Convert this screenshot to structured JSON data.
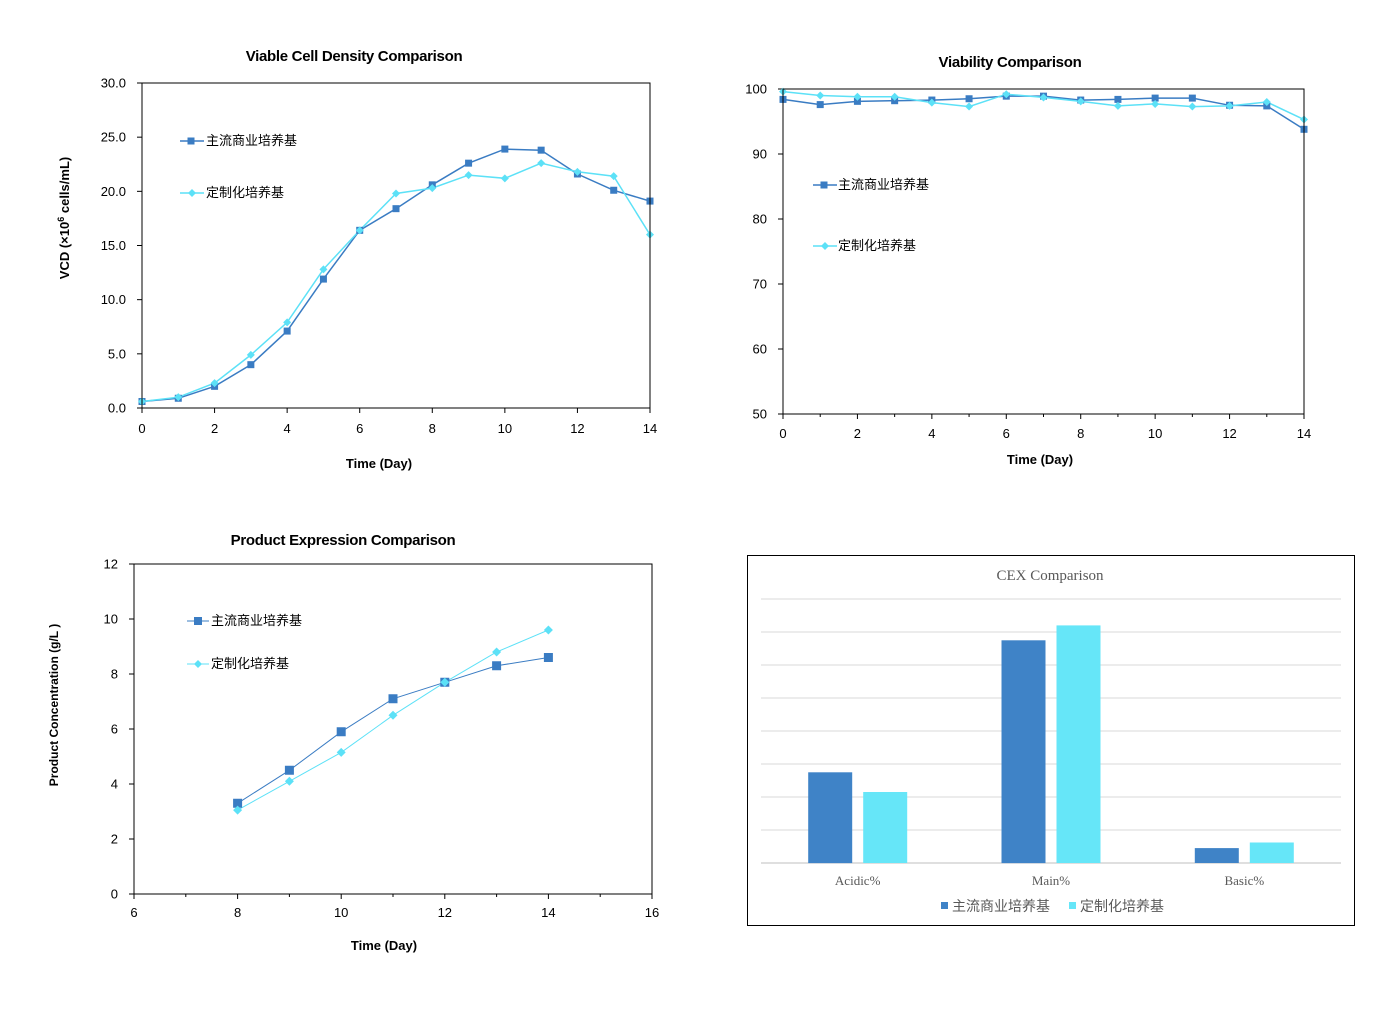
{
  "colors": {
    "series1": "#3A7CC3",
    "series2": "#5CE1F7",
    "cex_series1": "#3F83C7",
    "cex_series2": "#66E6F8",
    "frame": "#000000",
    "cex_grid": "#D9D9D9"
  },
  "chart_data": [
    {
      "type": "line",
      "title": "Viable Cell Density Comparison",
      "xlabel": "Time (Day)",
      "ylabel_prefix": "VCD (×10",
      "ylabel_exp": "6",
      "ylabel_suffix": " cells/mL)",
      "xlim": [
        0,
        14
      ],
      "ylim": [
        0,
        30
      ],
      "x_ticks": [
        "0",
        "2",
        "4",
        "6",
        "8",
        "10",
        "12",
        "14"
      ],
      "y_ticks": [
        "0.0",
        "5.0",
        "10.0",
        "15.0",
        "20.0",
        "25.0",
        "30.0"
      ],
      "legend_position": "top-left",
      "series": [
        {
          "name": "主流商业培养基",
          "marker": "square",
          "x": [
            0,
            1,
            2,
            3,
            4,
            5,
            6,
            7,
            8,
            9,
            10,
            11,
            12,
            13,
            14
          ],
          "y": [
            0.6,
            0.9,
            2.0,
            4.0,
            7.1,
            11.9,
            16.4,
            18.4,
            20.6,
            22.6,
            23.9,
            23.8,
            21.6,
            20.1,
            19.1
          ]
        },
        {
          "name": "定制化培养基",
          "marker": "diamond",
          "x": [
            0,
            1,
            2,
            3,
            4,
            5,
            6,
            7,
            8,
            9,
            10,
            11,
            12,
            13,
            14
          ],
          "y": [
            0.6,
            1.0,
            2.3,
            4.9,
            7.9,
            12.8,
            16.4,
            19.8,
            20.3,
            21.5,
            21.2,
            22.6,
            21.8,
            21.4,
            16.0
          ]
        }
      ]
    },
    {
      "type": "line",
      "title": "Viability Comparison",
      "xlabel": "Time (Day)",
      "xlim": [
        0,
        14
      ],
      "ylim": [
        50,
        100
      ],
      "x_ticks": [
        "0",
        "2",
        "4",
        "6",
        "8",
        "10",
        "12",
        "14"
      ],
      "y_ticks": [
        "50",
        "60",
        "70",
        "80",
        "90",
        "100"
      ],
      "legend_position": "middle-left",
      "series": [
        {
          "name": "主流商业培养基",
          "marker": "square",
          "x": [
            0,
            1,
            2,
            3,
            4,
            5,
            6,
            7,
            8,
            9,
            10,
            11,
            12,
            13,
            14
          ],
          "y": [
            98.4,
            97.6,
            98.1,
            98.2,
            98.3,
            98.5,
            98.9,
            98.9,
            98.3,
            98.4,
            98.6,
            98.6,
            97.5,
            97.4,
            93.8
          ]
        },
        {
          "name": "定制化培养基",
          "marker": "diamond",
          "x": [
            0,
            1,
            2,
            3,
            4,
            5,
            6,
            7,
            8,
            9,
            10,
            11,
            12,
            13,
            14
          ],
          "y": [
            99.6,
            99.0,
            98.8,
            98.8,
            97.9,
            97.3,
            99.2,
            98.7,
            98.1,
            97.4,
            97.7,
            97.3,
            97.4,
            98.0,
            95.3
          ]
        }
      ]
    },
    {
      "type": "line",
      "title": "Product Expression Comparison",
      "xlabel": "Time (Day)",
      "ylabel": "Product Concentration (g/L )",
      "xlim": [
        6,
        16
      ],
      "ylim": [
        0,
        12
      ],
      "x_ticks": [
        "6",
        "8",
        "10",
        "12",
        "14",
        "16"
      ],
      "y_ticks": [
        "0",
        "2",
        "4",
        "6",
        "8",
        "10",
        "12"
      ],
      "legend_position": "top-left",
      "series": [
        {
          "name": "主流商业培养基",
          "marker": "square",
          "x": [
            8,
            9,
            10,
            11,
            12,
            13,
            14
          ],
          "y": [
            3.3,
            4.5,
            5.9,
            7.1,
            7.7,
            8.3,
            8.6
          ]
        },
        {
          "name": "定制化培养基",
          "marker": "diamond",
          "x": [
            8,
            9,
            10,
            11,
            12,
            13,
            14
          ],
          "y": [
            3.05,
            4.1,
            5.15,
            6.5,
            7.7,
            8.8,
            9.6
          ]
        }
      ]
    },
    {
      "type": "bar",
      "title": "CEX Comparison",
      "categories": [
        "Acidic%",
        "Main%",
        "Basic%"
      ],
      "ylim": [
        0,
        80
      ],
      "grid": true,
      "legend_position": "bottom",
      "series": [
        {
          "name": "主流商业培养基",
          "values": [
            27.5,
            67.5,
            4.5
          ]
        },
        {
          "name": "定制化培养基",
          "values": [
            21.5,
            72.0,
            6.2
          ]
        }
      ]
    }
  ]
}
